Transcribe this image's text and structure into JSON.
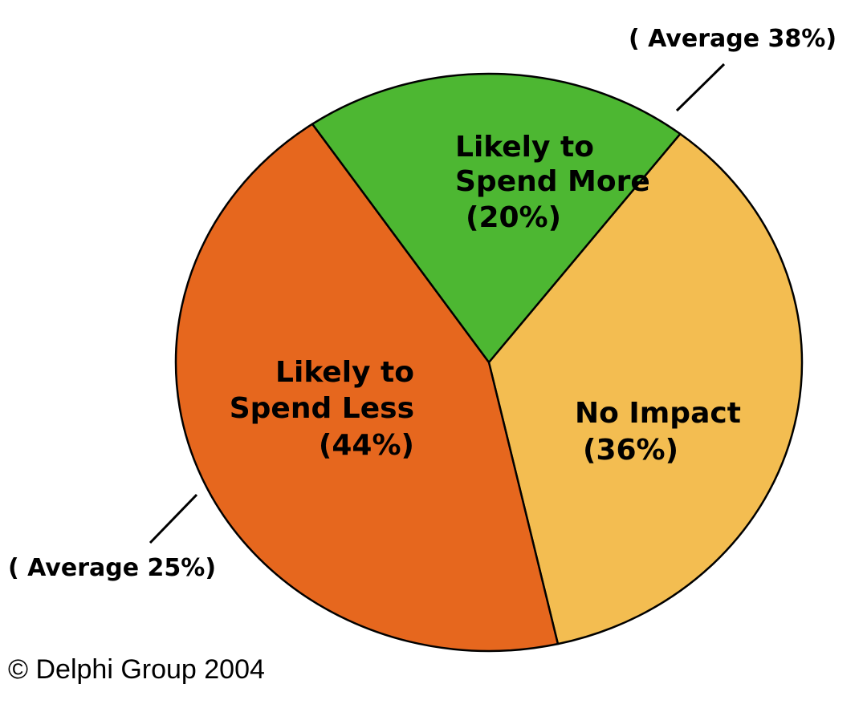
{
  "chart_data": {
    "type": "pie",
    "slices": [
      {
        "label_lines": [
          "Likely to",
          "Spend More"
        ],
        "percent_label": "(20%)",
        "value": 20,
        "color": "#4db732"
      },
      {
        "label_lines": [
          "No Impact"
        ],
        "percent_label": "(36%)",
        "value": 36,
        "color": "#f3bd51"
      },
      {
        "label_lines": [
          "Likely to",
          "Spend Less"
        ],
        "percent_label": "(44%)",
        "value": 44,
        "color": "#e6671e"
      }
    ],
    "annotations": [
      {
        "text": "( Average 38%)",
        "slice": "Likely to Spend More"
      },
      {
        "text": "( Average 25%)",
        "slice": "Likely to Spend Less"
      }
    ],
    "outline_color": "#000000"
  },
  "copyright": "© Delphi Group 2004"
}
